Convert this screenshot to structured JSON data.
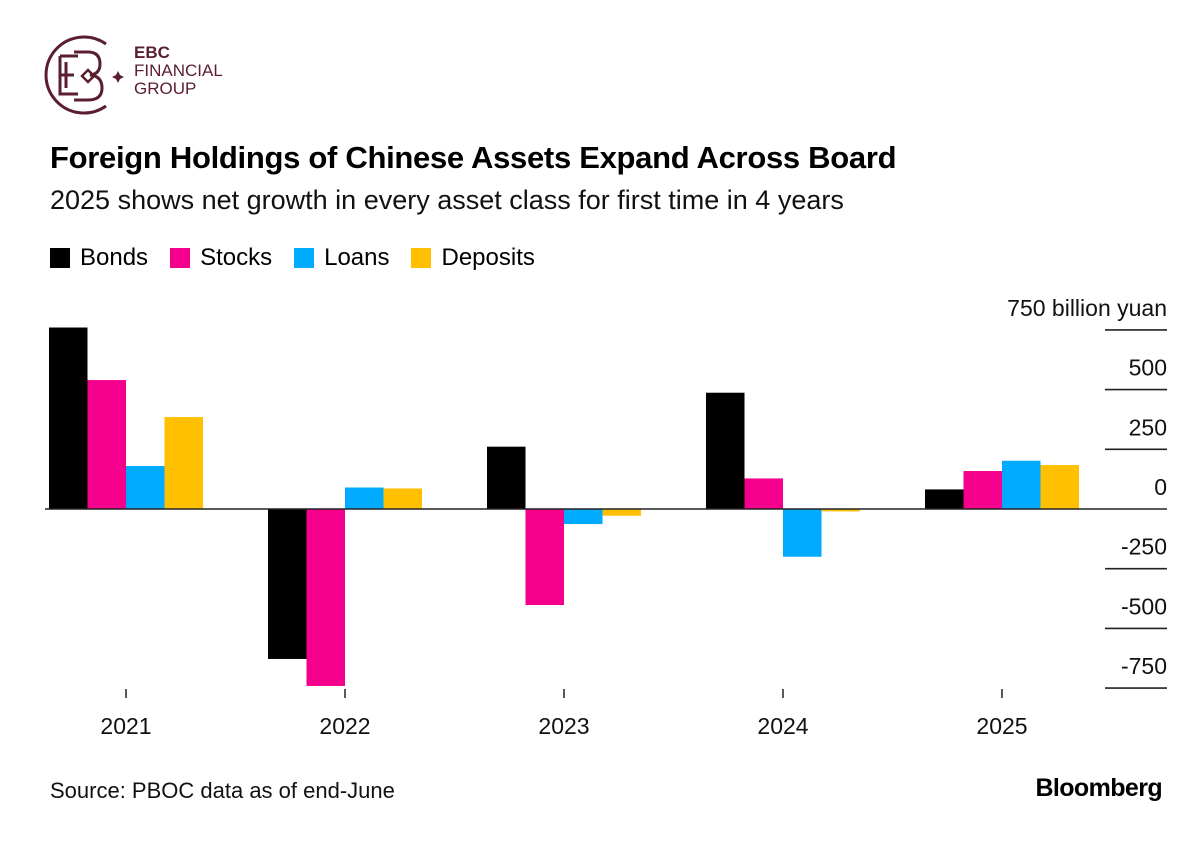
{
  "logo": {
    "line1": "EBC",
    "line2": "FINANCIAL",
    "line3": "GROUP",
    "color": "#5a1e2e"
  },
  "header": {
    "title": "Foreign Holdings of Chinese Assets Expand Across Board",
    "subtitle": "2025 shows net growth in every asset class for first time in 4 years"
  },
  "footer": {
    "source": "Source: PBOC data as of end-June",
    "brand": "Bloomberg"
  },
  "chart_data": {
    "type": "bar",
    "title": "Foreign Holdings of Chinese Assets Expand Across Board",
    "subtitle": "2025 shows net growth in every asset class for first time in 4 years",
    "xlabel": "",
    "ylabel": "billion yuan",
    "unit_label": "750 billion yuan",
    "categories": [
      "2021",
      "2022",
      "2023",
      "2024",
      "2025"
    ],
    "series": [
      {
        "name": "Bonds",
        "color": "#000000",
        "values": [
          760,
          -628,
          261,
          487,
          82
        ]
      },
      {
        "name": "Stocks",
        "color": "#f5008c",
        "values": [
          540,
          -741,
          -402,
          128,
          159
        ]
      },
      {
        "name": "Loans",
        "color": "#00aaff",
        "values": [
          180,
          90,
          -63,
          -200,
          202
        ]
      },
      {
        "name": "Deposits",
        "color": "#ffc000",
        "values": [
          385,
          86,
          -28,
          -10,
          184
        ]
      }
    ],
    "ylim": [
      -750,
      750
    ],
    "yticks": [
      750,
      500,
      250,
      0,
      -250,
      -500,
      -750
    ],
    "ytick_labels": [
      "750 billion yuan",
      "500",
      "250",
      "0",
      "-250",
      "-500",
      "-750"
    ],
    "y_axis_position": "right",
    "legend_position": "top-left",
    "grid": false
  }
}
